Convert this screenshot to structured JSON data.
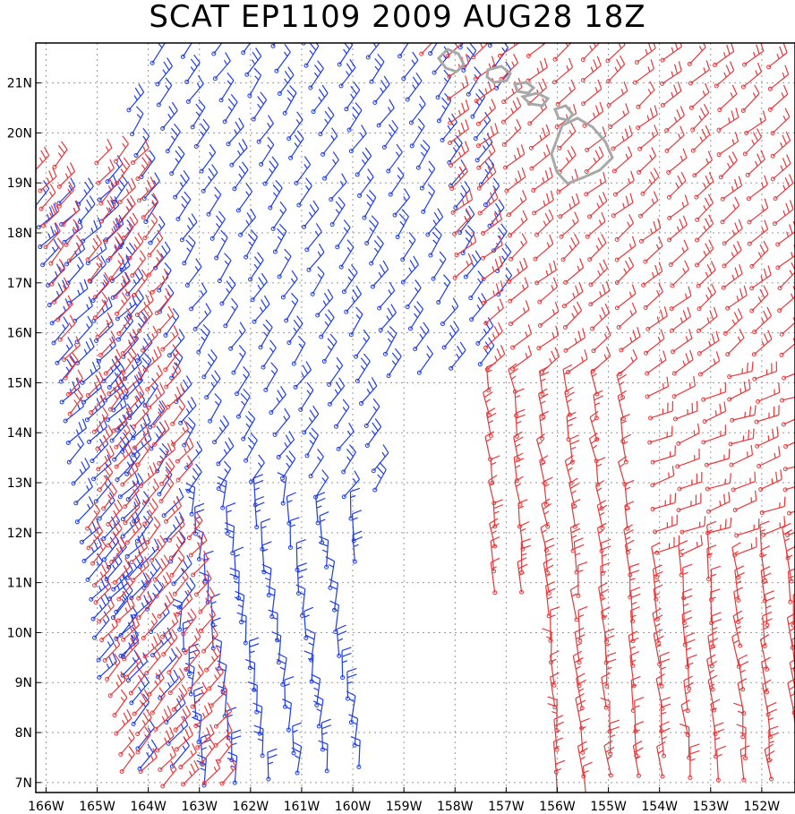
{
  "title": "SCAT EP1109 2009 AUG28 18Z",
  "map": {
    "lon_range": [
      -166.2,
      -151.35
    ],
    "lat_range": [
      6.8,
      21.8
    ],
    "x_tick_labels": [
      "166W",
      "165W",
      "164W",
      "163W",
      "162W",
      "161W",
      "160W",
      "159W",
      "158W",
      "157W",
      "156W",
      "155W",
      "154W",
      "153W",
      "152W"
    ],
    "x_tick_values": [
      -166,
      -165,
      -164,
      -163,
      -162,
      -161,
      -160,
      -159,
      -158,
      -157,
      -156,
      -155,
      -154,
      -153,
      -152
    ],
    "y_tick_labels": [
      "7N",
      "8N",
      "9N",
      "10N",
      "11N",
      "12N",
      "13N",
      "14N",
      "15N",
      "16N",
      "17N",
      "18N",
      "19N",
      "20N",
      "21N"
    ],
    "y_tick_values": [
      7,
      8,
      9,
      10,
      11,
      12,
      13,
      14,
      15,
      16,
      17,
      18,
      19,
      20,
      21
    ],
    "grid": "dotted",
    "colors": {
      "pass_a": "#1f3de8",
      "pass_b": "#e8383a",
      "coast": "#a8a8a8",
      "grid": "#9a9a9a"
    },
    "symbol": "wind-barb"
  }
}
